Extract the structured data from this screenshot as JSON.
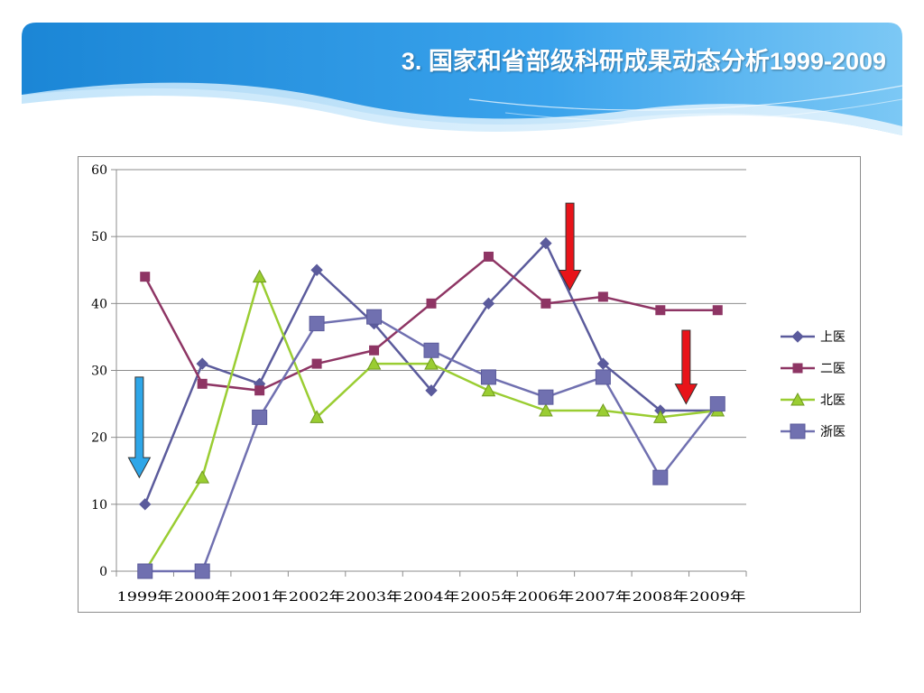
{
  "slide": {
    "title": "3. 国家和省部级科研成果动态分析1999-2009"
  },
  "chart_data": {
    "type": "line",
    "categories": [
      "1999年",
      "2000年",
      "2001年",
      "2002年",
      "2003年",
      "2004年",
      "2005年",
      "2006年",
      "2007年",
      "2008年",
      "2009年"
    ],
    "ylim": [
      0,
      60
    ],
    "yticks": [
      0,
      10,
      20,
      30,
      40,
      50,
      60
    ],
    "grid": true,
    "legend_position": "right",
    "series": [
      {
        "name": "上医",
        "color": "#5b5b9c",
        "marker": "diamond",
        "values": [
          10,
          31,
          28,
          45,
          37,
          27,
          40,
          49,
          31,
          24,
          24
        ]
      },
      {
        "name": "二医",
        "color": "#8e3564",
        "marker": "square",
        "values": [
          44,
          28,
          27,
          31,
          33,
          40,
          47,
          40,
          41,
          39,
          39
        ]
      },
      {
        "name": "北医",
        "color": "#9acd32",
        "marker": "triangle",
        "values": [
          0,
          14,
          44,
          23,
          31,
          31,
          27,
          24,
          24,
          23,
          24
        ]
      },
      {
        "name": "浙医",
        "color": "#7070b0",
        "marker": "bigsquare",
        "values": [
          0,
          0,
          23,
          37,
          38,
          33,
          29,
          26,
          29,
          14,
          25
        ]
      }
    ],
    "annotations": [
      {
        "type": "arrow-down",
        "color": "#2ea6e8",
        "x_index": -0.1,
        "y_top": 29,
        "y_bottom": 14
      },
      {
        "type": "arrow-down",
        "color": "#e8141a",
        "x_index": 7.42,
        "y_top": 55,
        "y_bottom": 42
      },
      {
        "type": "arrow-down",
        "color": "#e8141a",
        "x_index": 9.45,
        "y_top": 36,
        "y_bottom": 25
      }
    ]
  }
}
